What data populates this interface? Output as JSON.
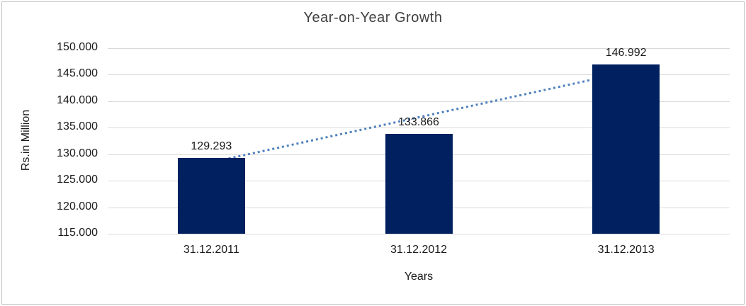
{
  "chart_data": {
    "type": "bar",
    "title": "Year-on-Year Growth",
    "xlabel": "Years",
    "ylabel": "Rs.in Million",
    "categories": [
      "31.12.2011",
      "31.12.2012",
      "31.12.2013"
    ],
    "values": [
      129.293,
      133.866,
      146.992
    ],
    "data_labels": [
      "129.293",
      "133.866",
      "146.992"
    ],
    "ylim": [
      115,
      150
    ],
    "ytick_step": 5,
    "ytick_labels": [
      "150.000",
      "145.000",
      "140.000",
      "135.000",
      "130.000",
      "125.000",
      "120.000",
      "115.000"
    ],
    "grid": true,
    "legend_position": "none",
    "bar_color": "#002060",
    "gridline_color": "#d9d9d9",
    "frame_border_color": "#c3c3c3",
    "trendline": {
      "type": "linear",
      "style": "dotted",
      "color": "#4f81bd",
      "start_value": 128.4,
      "end_value": 145.3
    }
  }
}
